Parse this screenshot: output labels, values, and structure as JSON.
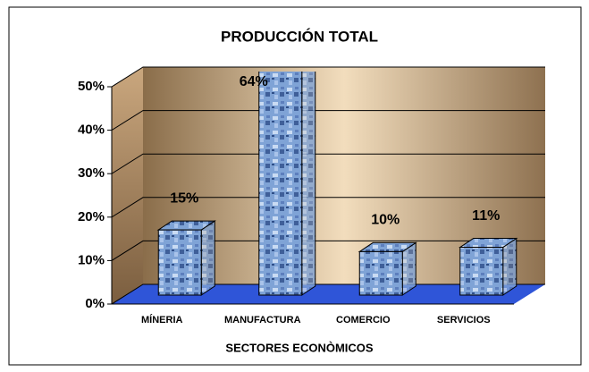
{
  "chart_data": {
    "type": "bar3d",
    "title": "PRODUCCIÓN TOTAL",
    "x_label": "SECTORES ECONÒMICOS",
    "categories": [
      "MÍNERIA",
      "MANUFACTURA",
      "COMERCIO",
      "SERVICIOS"
    ],
    "values": [
      15,
      64,
      10,
      11
    ],
    "value_labels": [
      "15%",
      "64%",
      "10%",
      "11%"
    ],
    "color": "#7fa3d6",
    "ylim": [
      0,
      50
    ],
    "yticks": [
      {
        "value": 0,
        "label": "0%"
      },
      {
        "value": 10,
        "label": "10%"
      },
      {
        "value": 20,
        "label": "20%"
      },
      {
        "value": 30,
        "label": "30%"
      },
      {
        "value": 40,
        "label": "40%"
      },
      {
        "value": 50,
        "label": "50%"
      }
    ],
    "grid": true
  }
}
